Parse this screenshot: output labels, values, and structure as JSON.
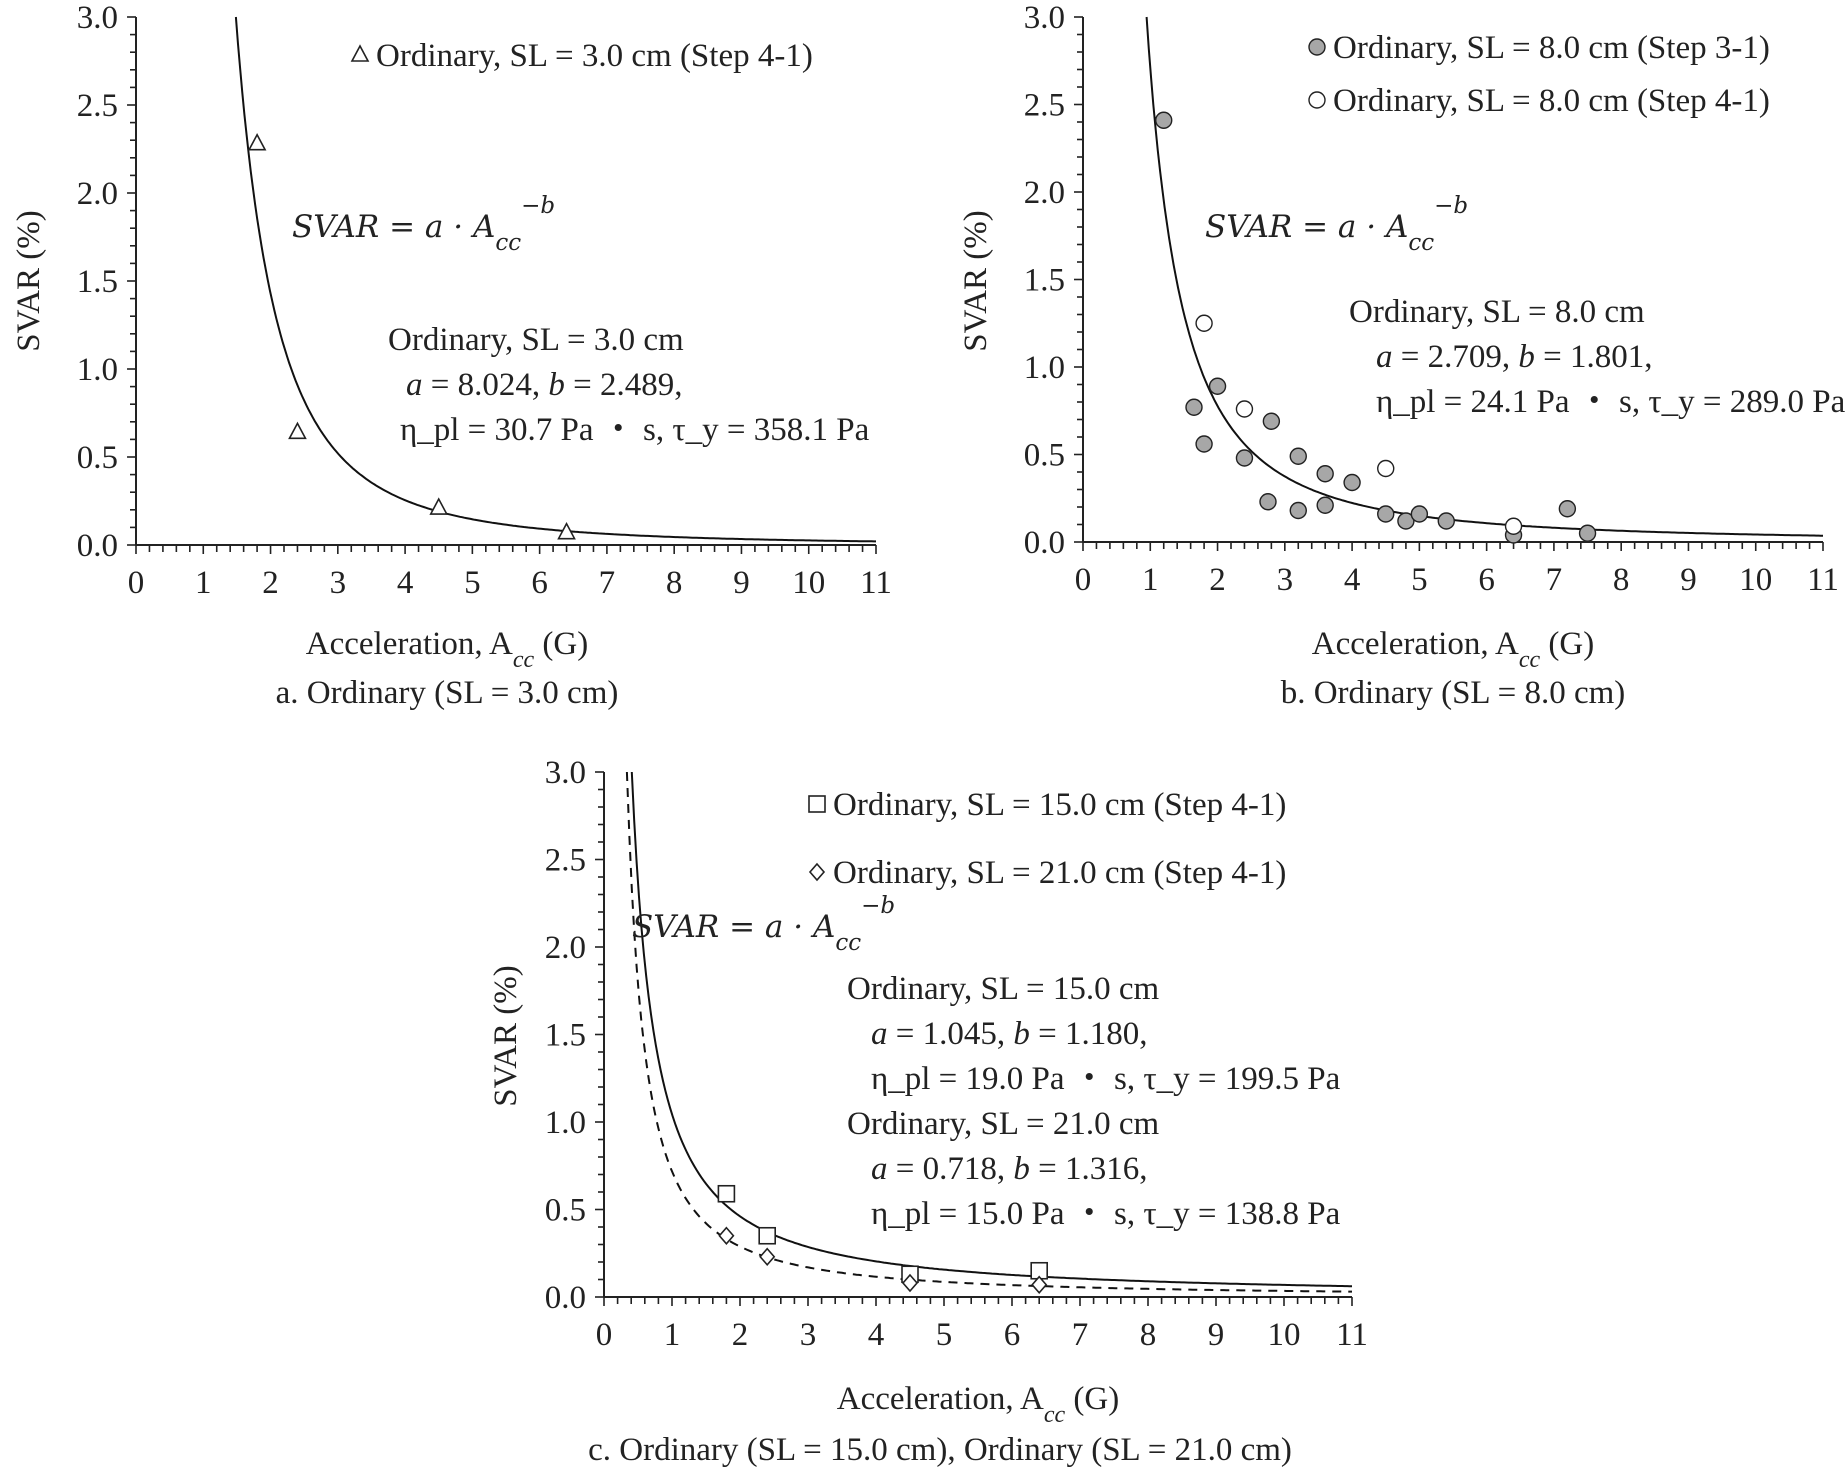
{
  "chart_data": [
    {
      "type": "scatter",
      "caption": "a. Ordinary (SL = 3.0 cm)",
      "xlabel": "Acceleration, A",
      "xlabel_sub": "cc",
      "xlabel_unit": " (G)",
      "ylabel": "SVAR (%)",
      "xlim": [
        0,
        11
      ],
      "ylim": [
        0,
        3.0
      ],
      "x_ticks": [
        "0",
        "1",
        "2",
        "3",
        "4",
        "5",
        "6",
        "7",
        "8",
        "9",
        "10",
        "11"
      ],
      "y_ticks": [
        "0.0",
        "0.5",
        "1.0",
        "1.5",
        "2.0",
        "2.5",
        "3.0"
      ],
      "equation": {
        "lhs": "SVAR = a · A",
        "sub": "cc",
        "sup": "−b"
      },
      "series": [
        {
          "name": "Ordinary, SL = 3.0 cm (Step 4-1)",
          "marker": "triangle",
          "x": [
            1.8,
            2.4,
            4.5,
            6.4
          ],
          "y": [
            2.28,
            0.64,
            0.21,
            0.07
          ]
        }
      ],
      "fits": [
        {
          "a": 8.024,
          "b": 2.489,
          "style": "solid"
        }
      ],
      "notes": [
        {
          "lines": [
            "Ordinary, SL = 3.0 cm",
            "a = 8.024, b = 2.489,",
            "η_pl = 30.7 Pa ・ s, τ_y = 358.1 Pa"
          ]
        }
      ]
    },
    {
      "type": "scatter",
      "caption": "b. Ordinary (SL = 8.0 cm)",
      "xlabel": "Acceleration, A",
      "xlabel_sub": "cc",
      "xlabel_unit": " (G)",
      "ylabel": "SVAR (%)",
      "xlim": [
        0,
        11
      ],
      "ylim": [
        0,
        3.0
      ],
      "x_ticks": [
        "0",
        "1",
        "2",
        "3",
        "4",
        "5",
        "6",
        "7",
        "8",
        "9",
        "10",
        "11"
      ],
      "y_ticks": [
        "0.0",
        "0.5",
        "1.0",
        "1.5",
        "2.0",
        "2.5",
        "3.0"
      ],
      "equation": {
        "lhs": "SVAR = a · A",
        "sub": "cc",
        "sup": "−b"
      },
      "series": [
        {
          "name": "Ordinary, SL = 8.0 cm (Step 3-1)",
          "marker": "circle-filled",
          "x": [
            1.2,
            1.65,
            1.8,
            2.0,
            2.4,
            2.75,
            2.8,
            3.2,
            3.2,
            3.6,
            3.6,
            4.0,
            4.5,
            4.8,
            5.0,
            5.4,
            6.4,
            7.2,
            7.5
          ],
          "y": [
            2.41,
            0.77,
            0.56,
            0.89,
            0.48,
            0.23,
            0.69,
            0.49,
            0.18,
            0.39,
            0.21,
            0.34,
            0.16,
            0.12,
            0.16,
            0.12,
            0.04,
            0.19,
            0.05
          ]
        },
        {
          "name": "Ordinary, SL = 8.0 cm (Step 4-1)",
          "marker": "circle-open",
          "x": [
            1.8,
            2.4,
            4.5,
            6.4
          ],
          "y": [
            1.25,
            0.76,
            0.42,
            0.09
          ]
        }
      ],
      "fits": [
        {
          "a": 2.709,
          "b": 1.801,
          "style": "solid"
        }
      ],
      "notes": [
        {
          "lines": [
            "Ordinary, SL = 8.0 cm",
            "a = 2.709, b = 1.801,",
            "η_pl = 24.1 Pa ・ s, τ_y = 289.0 Pa"
          ]
        }
      ]
    },
    {
      "type": "scatter",
      "caption": "c. Ordinary (SL = 15.0 cm), Ordinary (SL = 21.0 cm)",
      "xlabel": "Acceleration, A",
      "xlabel_sub": "cc",
      "xlabel_unit": " (G)",
      "ylabel": "SVAR (%)",
      "xlim": [
        0,
        11
      ],
      "ylim": [
        0,
        3.0
      ],
      "x_ticks": [
        "0",
        "1",
        "2",
        "3",
        "4",
        "5",
        "6",
        "7",
        "8",
        "9",
        "10",
        "11"
      ],
      "y_ticks": [
        "0.0",
        "0.5",
        "1.0",
        "1.5",
        "2.0",
        "2.5",
        "3.0"
      ],
      "equation": {
        "lhs": "SVAR = a · A",
        "sub": "cc",
        "sup": "−b"
      },
      "series": [
        {
          "name": "Ordinary, SL = 15.0 cm (Step 4-1)",
          "marker": "square",
          "x": [
            1.8,
            2.4,
            4.5,
            6.4
          ],
          "y": [
            0.59,
            0.35,
            0.13,
            0.15
          ]
        },
        {
          "name": "Ordinary, SL = 21.0 cm (Step 4-1)",
          "marker": "diamond",
          "x": [
            1.8,
            2.4,
            4.5,
            6.4
          ],
          "y": [
            0.35,
            0.23,
            0.08,
            0.07
          ]
        }
      ],
      "fits": [
        {
          "a": 1.045,
          "b": 1.18,
          "style": "solid"
        },
        {
          "a": 0.718,
          "b": 1.316,
          "style": "dashed"
        }
      ],
      "notes": [
        {
          "lines": [
            "Ordinary, SL = 15.0 cm",
            "a = 1.045, b = 1.180,",
            "η_pl = 19.0 Pa ・ s, τ_y = 199.5 Pa"
          ]
        },
        {
          "lines": [
            "Ordinary, SL = 21.0 cm",
            "a = 0.718, b = 1.316,",
            "η_pl = 15.0 Pa ・ s, τ_y = 138.8 Pa"
          ]
        }
      ]
    }
  ]
}
